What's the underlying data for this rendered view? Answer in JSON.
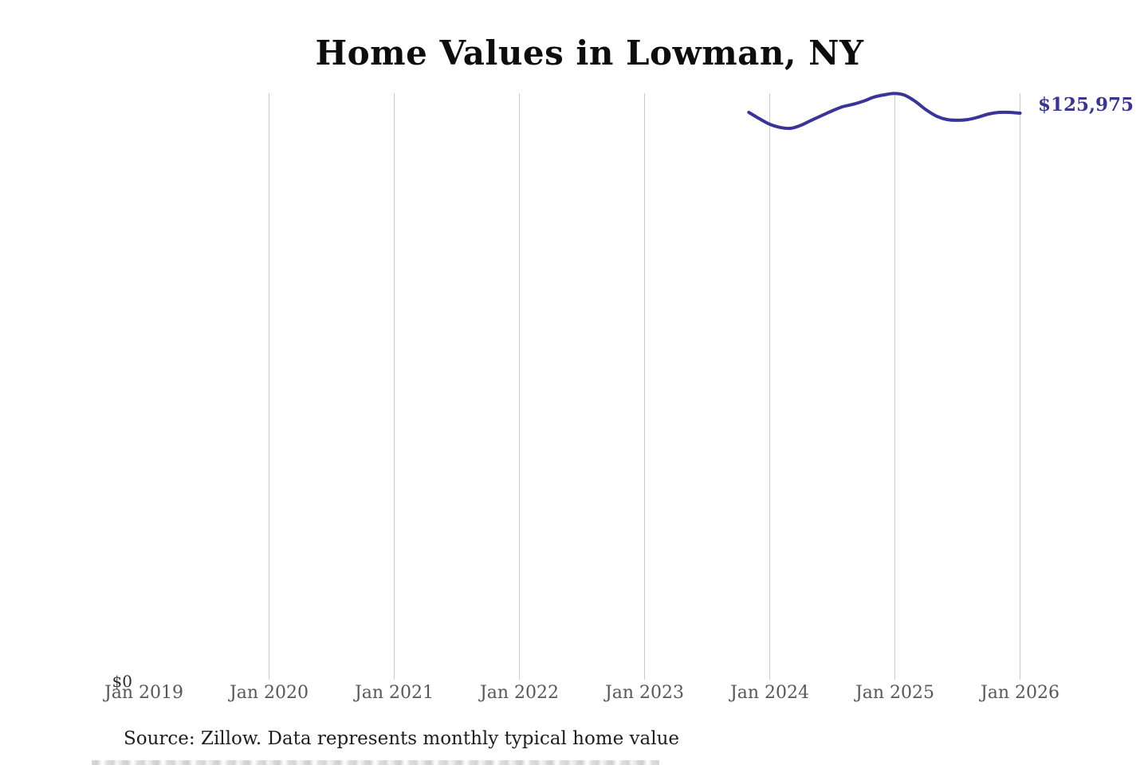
{
  "title": "Home Values in Lowman, NY",
  "annotation": {
    "latest_value_label": "$125,975"
  },
  "y_axis": {
    "zero_label": "$0"
  },
  "x_axis": {
    "tick_labels": [
      "Jan 2019",
      "Jan 2020",
      "Jan 2021",
      "Jan 2022",
      "Jan 2023",
      "Jan 2024",
      "Jan 2025",
      "Jan 2026"
    ]
  },
  "footer": {
    "source_note": "Source: Zillow. Data represents monthly typical home value"
  },
  "colors": {
    "line": "#3b3498",
    "value_label": "#3a3492",
    "gridline": "#cbcbcb",
    "tick_label": "#585858",
    "title": "#0d0d0d",
    "source_text": "#1e1e1e"
  },
  "chart_data": {
    "type": "line",
    "title": "Home Values in Lowman, NY",
    "xlabel": "",
    "ylabel": "",
    "ylim": [
      0,
      130400
    ],
    "grid": "vertical gridlines at each January from 2020 through 2026; no horizontal gridlines; no axis lines",
    "legend": "none",
    "x_tick_labels": [
      "Jan 2019",
      "Jan 2020",
      "Jan 2021",
      "Jan 2022",
      "Jan 2023",
      "Jan 2024",
      "Jan 2025",
      "Jan 2026"
    ],
    "y_tick_labels": [
      "$0"
    ],
    "latest_value": 125975,
    "latest_value_label": "$125,975",
    "series": [
      {
        "name": "Monthly typical home value (USD)",
        "x": [
          "Nov 2023",
          "Dec 2023",
          "Jan 2024",
          "Feb 2024",
          "Mar 2024",
          "Apr 2024",
          "May 2024",
          "Jun 2024",
          "Jul 2024",
          "Aug 2024",
          "Sep 2024",
          "Oct 2024",
          "Nov 2024",
          "Dec 2024",
          "Jan 2025",
          "Feb 2025",
          "Mar 2025",
          "Apr 2025",
          "May 2025",
          "Jun 2025",
          "Jul 2025",
          "Aug 2025",
          "Sep 2025",
          "Oct 2025",
          "Nov 2025",
          "Dec 2025",
          "Jan 2026"
        ],
        "values": [
          126150,
          124750,
          123500,
          122800,
          122600,
          123300,
          124400,
          125450,
          126500,
          127400,
          127950,
          128650,
          129550,
          130050,
          130350,
          129900,
          128500,
          126700,
          125300,
          124550,
          124400,
          124550,
          125100,
          125800,
          126150,
          126150,
          125975
        ]
      }
    ]
  }
}
